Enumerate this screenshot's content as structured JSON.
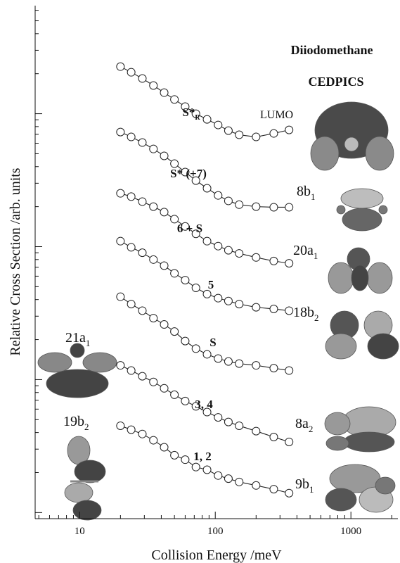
{
  "chart_data": {
    "type": "scatter",
    "title": "Diiodomethane",
    "subtitle": "CEDPICS",
    "x_label": "Collision Energy /meV",
    "y_label": "Relative Cross Section /arb. units",
    "log_x": true,
    "log_y": true,
    "minor_ticks": true,
    "ytick_labels": false,
    "xlim": [
      4.7,
      2220
    ],
    "xticks": [
      10,
      100,
      1000
    ],
    "ylim": [
      0.09,
      650
    ],
    "yticks": [
      0.1,
      1,
      10,
      100
    ],
    "x": [
      20,
      24,
      29,
      35,
      42,
      50,
      60,
      72,
      87,
      105,
      125,
      150,
      200,
      270,
      350
    ],
    "series": [
      {
        "name": "S*",
        "name_sub": "R",
        "color": "#222222",
        "values": [
          226,
          205,
          184,
          163,
          144,
          128,
          113,
          100,
          90.7,
          82.3,
          74.6,
          69.4,
          66.9,
          71.1,
          75.5
        ]
      },
      {
        "name": "S* (+7)",
        "color": "#222222",
        "values": [
          72.8,
          66.9,
          60.7,
          54.3,
          48.2,
          42.1,
          36.4,
          31.4,
          27.5,
          24.3,
          22.1,
          20.7,
          20.0,
          19.8,
          19.8
        ]
      },
      {
        "name": "6 + S",
        "color": "#222222",
        "values": [
          25.2,
          23.8,
          21.8,
          20.0,
          18.2,
          16.1,
          14.2,
          12.5,
          11.0,
          10.1,
          9.4,
          8.9,
          8.3,
          7.8,
          7.5
        ]
      },
      {
        "name": "5",
        "color": "#222222",
        "values": [
          11.0,
          9.9,
          9.0,
          8.0,
          7.2,
          6.3,
          5.6,
          4.9,
          4.4,
          4.1,
          3.9,
          3.7,
          3.5,
          3.4,
          3.3
        ]
      },
      {
        "name": "S",
        "color": "#222222",
        "values": [
          4.2,
          3.7,
          3.3,
          2.9,
          2.6,
          2.3,
          1.95,
          1.71,
          1.55,
          1.44,
          1.37,
          1.32,
          1.28,
          1.22,
          1.17
        ]
      },
      {
        "name": "3, 4",
        "color": "#222222",
        "values": [
          1.28,
          1.17,
          1.06,
          0.96,
          0.86,
          0.77,
          0.69,
          0.63,
          0.57,
          0.52,
          0.48,
          0.45,
          0.41,
          0.37,
          0.34
        ]
      },
      {
        "name": "1, 2",
        "color": "#222222",
        "values": [
          0.45,
          0.42,
          0.39,
          0.35,
          0.31,
          0.27,
          0.25,
          0.22,
          0.21,
          0.19,
          0.18,
          0.17,
          0.16,
          0.15,
          0.14
        ]
      }
    ],
    "orbitals": [
      {
        "text": "LUMO"
      },
      {
        "text": "8b",
        "sub": "1"
      },
      {
        "text": "20a",
        "sub": "1"
      },
      {
        "text": "18b",
        "sub": "2"
      },
      {
        "text": "8a",
        "sub": "2"
      },
      {
        "text": "9b",
        "sub": "1"
      },
      {
        "text": "21a",
        "sub": "1"
      },
      {
        "text": "19b",
        "sub": "2"
      }
    ]
  }
}
